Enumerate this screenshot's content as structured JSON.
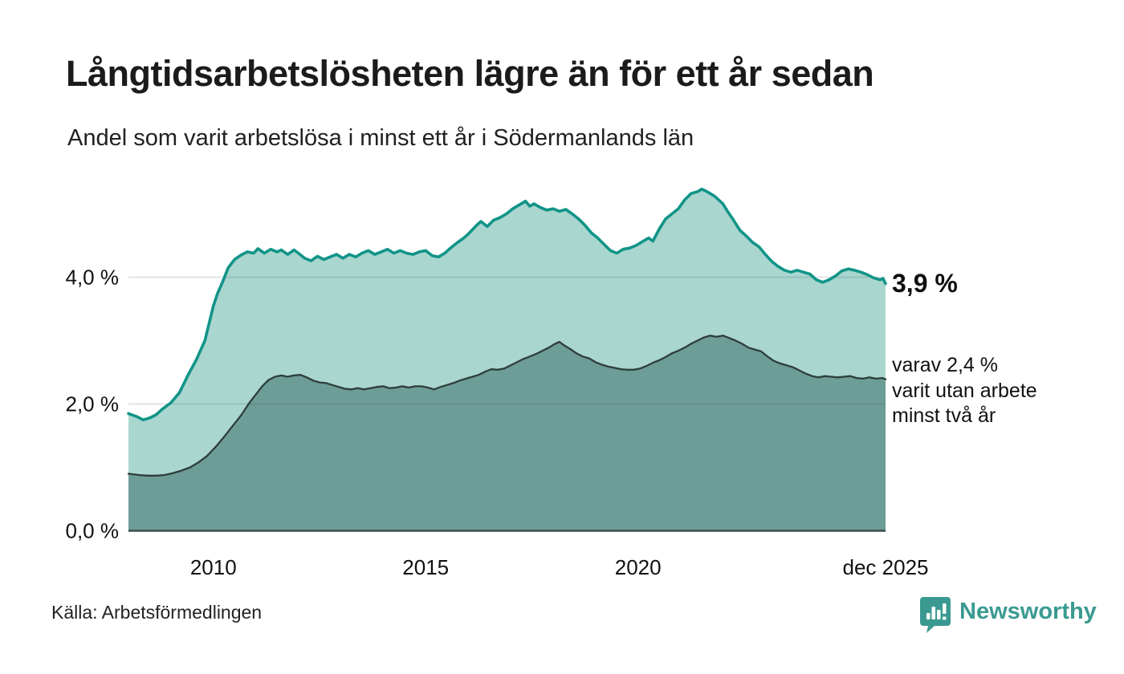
{
  "header": {
    "title": "Långtidsarbetslösheten lägre än för ett år sedan",
    "subtitle": "Andel som varit arbetslösa i minst ett år i Södermanlands län"
  },
  "footer": {
    "source": "Källa: Arbetsförmedlingen",
    "brand": "Newsworthy"
  },
  "colors": {
    "line_total": "#119488",
    "fill_total": "#a9d6cf",
    "line_two_years": "#2e3e3b",
    "fill_two_years": "#6d9d97",
    "baseline": "#3e4d4a",
    "gridline": "rgba(70,80,95,0.16)",
    "brand_teal": "#3a9a91",
    "text_dark": "#1b1b1b"
  },
  "chart_data": {
    "type": "area",
    "title": "Långtidsarbetslösheten lägre än för ett år sedan",
    "subtitle": "Andel som varit arbetslösa i minst ett år i Södermanlands län",
    "xlabel": "",
    "ylabel": "",
    "xlim": [
      2008.0,
      2025.83
    ],
    "ylim": [
      0,
      5.6
    ],
    "grid": true,
    "legend_position": "none",
    "x_ticks": [
      {
        "label": "2010",
        "year": 2010
      },
      {
        "label": "2015",
        "year": 2015
      },
      {
        "label": "2020",
        "year": 2020
      },
      {
        "label": "dec 2025",
        "year": 2025.83
      }
    ],
    "y_ticks": [
      {
        "label": "4,0 %",
        "value": 4.0
      },
      {
        "label": "2,0 %",
        "value": 2.0
      },
      {
        "label": "0,0 %",
        "value": 0.0
      }
    ],
    "series": [
      {
        "name": "Arbetslösa minst ett år",
        "last_value_pct": 3.9,
        "points": [
          [
            2008.0,
            1.85
          ],
          [
            2008.2,
            1.8
          ],
          [
            2008.35,
            1.75
          ],
          [
            2008.5,
            1.78
          ],
          [
            2008.65,
            1.83
          ],
          [
            2008.8,
            1.92
          ],
          [
            2009.0,
            2.02
          ],
          [
            2009.2,
            2.18
          ],
          [
            2009.4,
            2.45
          ],
          [
            2009.6,
            2.7
          ],
          [
            2009.8,
            3.0
          ],
          [
            2010.0,
            3.55
          ],
          [
            2010.1,
            3.75
          ],
          [
            2010.2,
            3.9
          ],
          [
            2010.35,
            4.15
          ],
          [
            2010.5,
            4.28
          ],
          [
            2010.65,
            4.35
          ],
          [
            2010.8,
            4.4
          ],
          [
            2010.95,
            4.38
          ],
          [
            2011.05,
            4.45
          ],
          [
            2011.2,
            4.38
          ],
          [
            2011.35,
            4.44
          ],
          [
            2011.5,
            4.4
          ],
          [
            2011.6,
            4.43
          ],
          [
            2011.75,
            4.36
          ],
          [
            2011.9,
            4.43
          ],
          [
            2012.0,
            4.38
          ],
          [
            2012.15,
            4.3
          ],
          [
            2012.3,
            4.26
          ],
          [
            2012.45,
            4.33
          ],
          [
            2012.6,
            4.28
          ],
          [
            2012.75,
            4.32
          ],
          [
            2012.9,
            4.36
          ],
          [
            2013.05,
            4.3
          ],
          [
            2013.2,
            4.36
          ],
          [
            2013.35,
            4.32
          ],
          [
            2013.5,
            4.38
          ],
          [
            2013.65,
            4.42
          ],
          [
            2013.8,
            4.36
          ],
          [
            2013.95,
            4.4
          ],
          [
            2014.1,
            4.44
          ],
          [
            2014.25,
            4.38
          ],
          [
            2014.4,
            4.42
          ],
          [
            2014.55,
            4.38
          ],
          [
            2014.7,
            4.36
          ],
          [
            2014.85,
            4.4
          ],
          [
            2015.0,
            4.42
          ],
          [
            2015.15,
            4.34
          ],
          [
            2015.3,
            4.32
          ],
          [
            2015.45,
            4.38
          ],
          [
            2015.6,
            4.47
          ],
          [
            2015.75,
            4.55
          ],
          [
            2015.9,
            4.62
          ],
          [
            2016.0,
            4.68
          ],
          [
            2016.1,
            4.75
          ],
          [
            2016.2,
            4.82
          ],
          [
            2016.3,
            4.88
          ],
          [
            2016.45,
            4.8
          ],
          [
            2016.6,
            4.9
          ],
          [
            2016.75,
            4.94
          ],
          [
            2016.9,
            5.0
          ],
          [
            2017.05,
            5.08
          ],
          [
            2017.2,
            5.14
          ],
          [
            2017.35,
            5.2
          ],
          [
            2017.45,
            5.12
          ],
          [
            2017.55,
            5.16
          ],
          [
            2017.7,
            5.1
          ],
          [
            2017.85,
            5.06
          ],
          [
            2018.0,
            5.08
          ],
          [
            2018.15,
            5.04
          ],
          [
            2018.3,
            5.07
          ],
          [
            2018.45,
            5.0
          ],
          [
            2018.6,
            4.92
          ],
          [
            2018.75,
            4.82
          ],
          [
            2018.9,
            4.7
          ],
          [
            2019.05,
            4.62
          ],
          [
            2019.2,
            4.52
          ],
          [
            2019.35,
            4.42
          ],
          [
            2019.5,
            4.38
          ],
          [
            2019.65,
            4.44
          ],
          [
            2019.8,
            4.46
          ],
          [
            2019.95,
            4.5
          ],
          [
            2020.1,
            4.56
          ],
          [
            2020.25,
            4.62
          ],
          [
            2020.35,
            4.57
          ],
          [
            2020.5,
            4.76
          ],
          [
            2020.65,
            4.92
          ],
          [
            2020.8,
            5.0
          ],
          [
            2020.95,
            5.08
          ],
          [
            2021.1,
            5.22
          ],
          [
            2021.25,
            5.32
          ],
          [
            2021.4,
            5.35
          ],
          [
            2021.5,
            5.39
          ],
          [
            2021.6,
            5.36
          ],
          [
            2021.7,
            5.32
          ],
          [
            2021.8,
            5.28
          ],
          [
            2021.9,
            5.22
          ],
          [
            2022.0,
            5.16
          ],
          [
            2022.1,
            5.05
          ],
          [
            2022.25,
            4.9
          ],
          [
            2022.4,
            4.74
          ],
          [
            2022.55,
            4.65
          ],
          [
            2022.7,
            4.55
          ],
          [
            2022.85,
            4.48
          ],
          [
            2023.0,
            4.36
          ],
          [
            2023.15,
            4.25
          ],
          [
            2023.3,
            4.17
          ],
          [
            2023.45,
            4.11
          ],
          [
            2023.6,
            4.08
          ],
          [
            2023.75,
            4.11
          ],
          [
            2023.9,
            4.08
          ],
          [
            2024.05,
            4.05
          ],
          [
            2024.2,
            3.96
          ],
          [
            2024.35,
            3.92
          ],
          [
            2024.5,
            3.96
          ],
          [
            2024.65,
            4.02
          ],
          [
            2024.8,
            4.1
          ],
          [
            2024.95,
            4.13
          ],
          [
            2025.1,
            4.11
          ],
          [
            2025.25,
            4.08
          ],
          [
            2025.4,
            4.04
          ],
          [
            2025.55,
            3.99
          ],
          [
            2025.7,
            3.96
          ],
          [
            2025.77,
            3.98
          ],
          [
            2025.83,
            3.9
          ]
        ]
      },
      {
        "name": "Arbetslösa minst två år",
        "last_value_pct": 2.4,
        "points": [
          [
            2008.0,
            0.9
          ],
          [
            2008.25,
            0.88
          ],
          [
            2008.45,
            0.87
          ],
          [
            2008.65,
            0.87
          ],
          [
            2008.85,
            0.88
          ],
          [
            2009.05,
            0.91
          ],
          [
            2009.25,
            0.95
          ],
          [
            2009.45,
            1.0
          ],
          [
            2009.65,
            1.08
          ],
          [
            2009.85,
            1.18
          ],
          [
            2010.05,
            1.32
          ],
          [
            2010.25,
            1.48
          ],
          [
            2010.45,
            1.65
          ],
          [
            2010.65,
            1.82
          ],
          [
            2010.85,
            2.02
          ],
          [
            2011.0,
            2.15
          ],
          [
            2011.15,
            2.28
          ],
          [
            2011.3,
            2.38
          ],
          [
            2011.45,
            2.43
          ],
          [
            2011.6,
            2.45
          ],
          [
            2011.75,
            2.43
          ],
          [
            2011.9,
            2.45
          ],
          [
            2012.05,
            2.46
          ],
          [
            2012.2,
            2.42
          ],
          [
            2012.35,
            2.37
          ],
          [
            2012.5,
            2.34
          ],
          [
            2012.65,
            2.33
          ],
          [
            2012.8,
            2.3
          ],
          [
            2012.95,
            2.27
          ],
          [
            2013.1,
            2.24
          ],
          [
            2013.25,
            2.23
          ],
          [
            2013.4,
            2.25
          ],
          [
            2013.55,
            2.23
          ],
          [
            2013.7,
            2.25
          ],
          [
            2013.85,
            2.27
          ],
          [
            2014.0,
            2.28
          ],
          [
            2014.15,
            2.25
          ],
          [
            2014.3,
            2.26
          ],
          [
            2014.45,
            2.28
          ],
          [
            2014.6,
            2.26
          ],
          [
            2014.75,
            2.28
          ],
          [
            2014.9,
            2.28
          ],
          [
            2015.05,
            2.26
          ],
          [
            2015.2,
            2.23
          ],
          [
            2015.35,
            2.27
          ],
          [
            2015.5,
            2.3
          ],
          [
            2015.65,
            2.33
          ],
          [
            2015.8,
            2.37
          ],
          [
            2015.95,
            2.4
          ],
          [
            2016.1,
            2.43
          ],
          [
            2016.25,
            2.46
          ],
          [
            2016.4,
            2.51
          ],
          [
            2016.55,
            2.55
          ],
          [
            2016.7,
            2.54
          ],
          [
            2016.85,
            2.56
          ],
          [
            2017.0,
            2.61
          ],
          [
            2017.15,
            2.66
          ],
          [
            2017.3,
            2.71
          ],
          [
            2017.45,
            2.75
          ],
          [
            2017.6,
            2.79
          ],
          [
            2017.75,
            2.84
          ],
          [
            2017.9,
            2.89
          ],
          [
            2018.05,
            2.95
          ],
          [
            2018.15,
            2.98
          ],
          [
            2018.25,
            2.93
          ],
          [
            2018.4,
            2.87
          ],
          [
            2018.55,
            2.8
          ],
          [
            2018.7,
            2.75
          ],
          [
            2018.85,
            2.72
          ],
          [
            2019.0,
            2.66
          ],
          [
            2019.15,
            2.62
          ],
          [
            2019.3,
            2.59
          ],
          [
            2019.45,
            2.57
          ],
          [
            2019.6,
            2.55
          ],
          [
            2019.75,
            2.54
          ],
          [
            2019.9,
            2.54
          ],
          [
            2020.05,
            2.56
          ],
          [
            2020.2,
            2.6
          ],
          [
            2020.35,
            2.65
          ],
          [
            2020.5,
            2.69
          ],
          [
            2020.65,
            2.74
          ],
          [
            2020.8,
            2.8
          ],
          [
            2020.95,
            2.84
          ],
          [
            2021.1,
            2.89
          ],
          [
            2021.25,
            2.95
          ],
          [
            2021.4,
            3.0
          ],
          [
            2021.55,
            3.05
          ],
          [
            2021.7,
            3.08
          ],
          [
            2021.85,
            3.06
          ],
          [
            2022.0,
            3.08
          ],
          [
            2022.15,
            3.04
          ],
          [
            2022.3,
            3.0
          ],
          [
            2022.45,
            2.95
          ],
          [
            2022.6,
            2.89
          ],
          [
            2022.75,
            2.86
          ],
          [
            2022.9,
            2.83
          ],
          [
            2023.05,
            2.75
          ],
          [
            2023.2,
            2.68
          ],
          [
            2023.35,
            2.64
          ],
          [
            2023.5,
            2.61
          ],
          [
            2023.65,
            2.58
          ],
          [
            2023.8,
            2.53
          ],
          [
            2023.95,
            2.48
          ],
          [
            2024.1,
            2.44
          ],
          [
            2024.25,
            2.42
          ],
          [
            2024.4,
            2.44
          ],
          [
            2024.55,
            2.43
          ],
          [
            2024.7,
            2.42
          ],
          [
            2024.85,
            2.43
          ],
          [
            2025.0,
            2.44
          ],
          [
            2025.15,
            2.41
          ],
          [
            2025.3,
            2.4
          ],
          [
            2025.45,
            2.42
          ],
          [
            2025.6,
            2.4
          ],
          [
            2025.75,
            2.41
          ],
          [
            2025.83,
            2.39
          ]
        ]
      }
    ],
    "annotations": [
      {
        "text": "3,9 %",
        "bold": true
      },
      {
        "text": "varav 2,4 %\nvarit utan arbete\nminst två år",
        "bold": false
      }
    ]
  }
}
